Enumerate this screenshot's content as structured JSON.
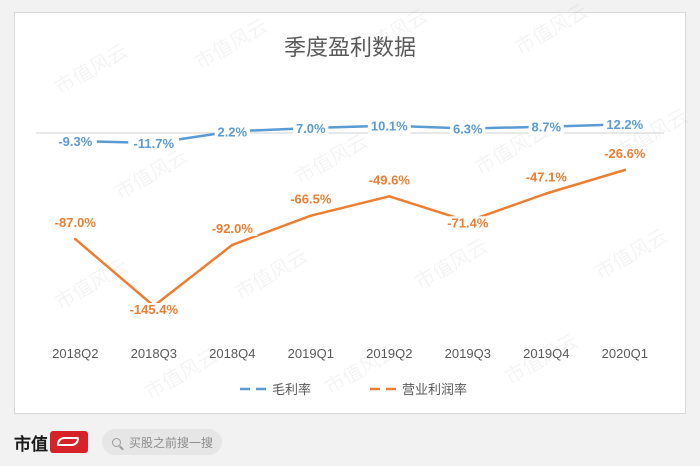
{
  "chart_data": {
    "type": "line",
    "title": "季度盈利数据",
    "categories": [
      "2018Q2",
      "2018Q3",
      "2018Q4",
      "2019Q1",
      "2019Q2",
      "2019Q3",
      "2019Q4",
      "2020Q1"
    ],
    "series": [
      {
        "name": "毛利率",
        "values": [
          -9.3,
          -11.7,
          2.2,
          7.0,
          10.1,
          6.3,
          8.7,
          12.2
        ],
        "labels": [
          "-9.3%",
          "-11.7%",
          "2.2%",
          "7.0%",
          "10.1%",
          "6.3%",
          "8.7%",
          "12.2%"
        ],
        "color": "#5b9bd5"
      },
      {
        "name": "营业利润率",
        "values": [
          -87.0,
          -145.4,
          -92.0,
          -66.5,
          -49.6,
          -71.4,
          -47.1,
          -26.6
        ],
        "labels": [
          "-87.0%",
          "-145.4%",
          "-92.0%",
          "-66.5%",
          "-49.6%",
          "-71.4%",
          "-47.1%",
          "-26.6%"
        ],
        "color": "#ed7d31"
      }
    ],
    "ylim": [
      -160,
      20
    ],
    "zero_line": true,
    "grid": false,
    "legend": "bottom",
    "xlabel": "",
    "ylabel": ""
  },
  "watermark": "市值风云",
  "footer": {
    "brand_text": "市值",
    "search_placeholder": "买股之前搜一搜"
  }
}
